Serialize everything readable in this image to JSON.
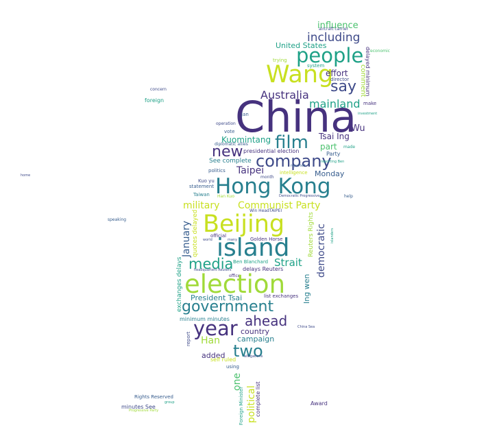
{
  "colors": {
    "purple": "#46327e",
    "indigo": "#3e4a89",
    "blue": "#365c8d",
    "teal_blue": "#277f8e",
    "teal": "#1fa187",
    "green": "#4ac16d",
    "light_green": "#a0da39",
    "yellow": "#c8e020"
  },
  "words": {
    "china": "China",
    "wang": "Wang",
    "people": "people",
    "including": "including",
    "influence": "influence",
    "aircraft_carrier": "aircraft carrier",
    "united_states": "United States",
    "economic": "economic",
    "trying": "trying",
    "system": "system",
    "say": "say",
    "effort": "effort",
    "director": "director",
    "comment": "comment",
    "delayed_minimum": "delayed minimum",
    "concern": "concern",
    "foreign": "foreign",
    "australia": "Australia",
    "mainland": "mainland",
    "make": "make",
    "jan": "Jan",
    "investment": "investment",
    "operation": "operation",
    "wu": "Wu",
    "vote": "vote",
    "tsai_ing": "Tsai Ing",
    "film": "film",
    "kuomintang": "Kuomintang",
    "diplomatic_allies": "diplomatic allies",
    "part": "part",
    "made": "made",
    "new": "new",
    "presidential_election": "presidential election",
    "company": "company",
    "party": "Party",
    "see_complete": "See complete",
    "reporting_ben": "reporting Ben",
    "reported": "reported",
    "taipei": "Taipei",
    "politics": "politics",
    "monday": "Monday",
    "intelligence": "intelligence",
    "month": "month",
    "home": "home",
    "kuo_yu": "Kuo yu",
    "statement": "statement",
    "hong_kong": "Hong Kong",
    "taiwan": "Taiwan",
    "han_kuo": "Han Kuo",
    "democratic_progressive": "Democratic Progressive",
    "help": "help",
    "military": "military",
    "communist_party": "Communist Party",
    "win_headtaipei": "Win HeadTAIPEI",
    "speaking": "speaking",
    "january": "January",
    "quotes_delayed": "quotes delayed",
    "beijing": "Beijing",
    "reuters_rights": "Reuters Rights",
    "islanders": "islanders",
    "official": "official",
    "world": "world",
    "many": "many",
    "golden_horse": "Golden Horse",
    "island": "island",
    "media": "media",
    "ben_blanchard": "Ben Blanchard",
    "strait": "Strait",
    "democratic": "democratic",
    "exchanges_delays": "exchanges delays",
    "headquarters_reuters": "headquarters Reuters",
    "delays_reuters": "delays Reuters",
    "office": "office",
    "election": "election",
    "ing_wen": "Ing wen",
    "president_tsai": "President Tsai",
    "list_exchanges": "list exchanges",
    "government": "government",
    "china_sea": "China Sea",
    "minimum_minutes": "minimum minutes",
    "ahead": "ahead",
    "year": "year",
    "country": "country",
    "report": "report",
    "han": "Han",
    "campaign": "campaign",
    "two": "two",
    "added": "added",
    "self_ruled": "self ruled",
    "allegations": "allegations",
    "using": "using",
    "one": "one",
    "political": "political",
    "complete_list": "complete list",
    "foreign_minister": "Foreign Minister",
    "rights_reserved": "Rights Reserved",
    "group": "group",
    "minutes_see": "minutes See",
    "progressive_party": "Progressive Party",
    "award": "Award"
  }
}
